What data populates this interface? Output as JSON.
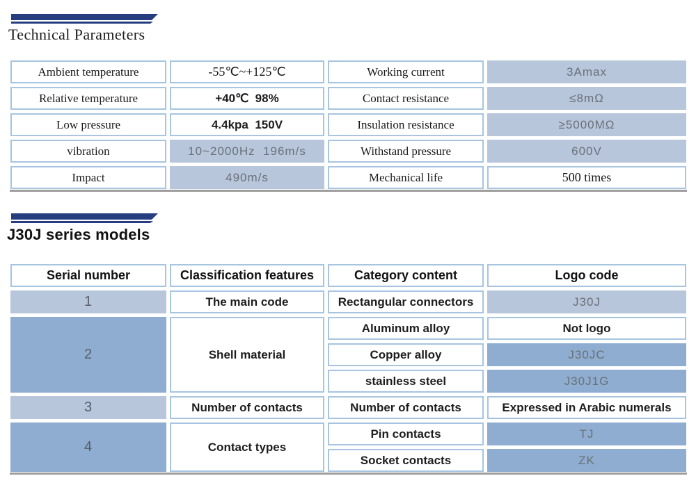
{
  "technical": {
    "title": "Technical Parameters",
    "rows": [
      {
        "p1": "Ambient temperature",
        "v1": "-55℃~+125℃",
        "p2": "Working current",
        "v2": "3Amax"
      },
      {
        "p1": "Relative temperature",
        "v1": "+40℃  98%",
        "p2": "Contact resistance",
        "v2": "≤8mΩ"
      },
      {
        "p1": "Low pressure",
        "v1": "4.4kpa  150V",
        "p2": "Insulation resistance",
        "v2": "≥5000MΩ"
      },
      {
        "p1": "vibration",
        "v1": "10~2000Hz  196m/s",
        "p2": "Withstand pressure",
        "v2": "600V"
      },
      {
        "p1": "Impact",
        "v1": "490m/s",
        "p2": "Mechanical life",
        "v2": "500 times"
      }
    ]
  },
  "models": {
    "title": "J30J series models",
    "headers": [
      "Serial number",
      "Classification features",
      "Category content",
      "Logo code"
    ],
    "row1": {
      "serial": "1",
      "feature": "The main code",
      "category": "Rectangular connectors",
      "logo": "J30J"
    },
    "row2": {
      "serial": "2",
      "feature": "Shell material",
      "categories": [
        "Aluminum alloy",
        "Copper alloy",
        "stainless steel"
      ],
      "logos": [
        "Not logo",
        "J30JC",
        "J30J1G"
      ]
    },
    "row3": {
      "serial": "3",
      "feature": "Number of contacts",
      "category": "Number of contacts",
      "logo": "Expressed in Arabic numerals"
    },
    "row4": {
      "serial": "4",
      "feature": "Contact types",
      "categories": [
        "Pin contacts",
        "Socket contacts"
      ],
      "logos": [
        "TJ",
        "ZK"
      ]
    }
  },
  "colors": {
    "stripe_navy": "#263d80",
    "cell_border": "#a7c4e0",
    "fill_light": "#b7c6db",
    "fill_dark": "#8eadd0",
    "value_gray": "#6a7077",
    "text_dark": "#1d1d1d",
    "table_baseline": "#9e9e9e"
  }
}
